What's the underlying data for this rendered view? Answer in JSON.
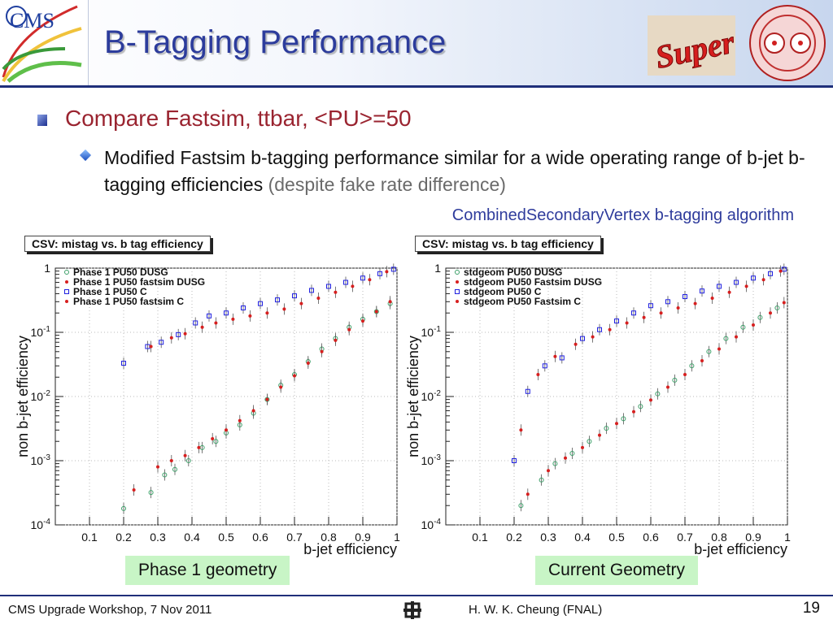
{
  "header": {
    "title": "B-Tagging Performance",
    "logos": {
      "cms_text": "CMS",
      "super_text": "Super"
    }
  },
  "bullets": {
    "main": "Compare Fastsim, ttbar, <PU>=50",
    "sub": "Modified Fastsim b-tagging performance similar for a wide operating range of b-jet b-tagging efficiencies",
    "sub_note": "(despite fake rate difference)",
    "algorithm": "CombinedSecondaryVertex b-tagging algorithm"
  },
  "plots": {
    "left": {
      "title": "CSV: mistag vs. b tag efficiency",
      "geometry_label": "Phase 1 geometry"
    },
    "right": {
      "title": "CSV: mistag vs. b tag efficiency",
      "geometry_label": "Current Geometry"
    }
  },
  "footer": {
    "event": "CMS Upgrade Workshop, 7 Nov 2011",
    "author": "H. W. K. Cheung (FNAL)",
    "page": "19"
  },
  "colors": {
    "title": "#2c3c9c",
    "bullet_main": "#9a2430",
    "green_label": "#c8f5c6",
    "series_green": "#3c9f68",
    "series_red": "#d71f1f",
    "series_blue": "#2020e0"
  },
  "chart_data": [
    {
      "type": "scatter",
      "title": "CSV: mistag vs. b tag efficiency",
      "xlabel": "b-jet efficiency",
      "ylabel": "non b-jet efficiency",
      "xlim": [
        0,
        1
      ],
      "ylim": [
        0.0001,
        1
      ],
      "yscale": "log",
      "xticks": [
        "0.1",
        "0.2",
        "0.3",
        "0.4",
        "0.5",
        "0.6",
        "0.7",
        "0.8",
        "0.9",
        "1"
      ],
      "yticks": [
        "10-4",
        "10-3",
        "10-2",
        "10-1",
        "1"
      ],
      "legend_position": "top-left",
      "series": [
        {
          "name": "Phase 1 PU50 DUSG",
          "marker": "open-circle",
          "color": "#3c9f68",
          "x": [
            0.2,
            0.28,
            0.32,
            0.35,
            0.39,
            0.43,
            0.47,
            0.5,
            0.54,
            0.58,
            0.62,
            0.66,
            0.7,
            0.74,
            0.78,
            0.82,
            0.86,
            0.9,
            0.94,
            0.98
          ],
          "y": [
            0.00018,
            0.00032,
            0.0006,
            0.00073,
            0.001,
            0.0016,
            0.002,
            0.0027,
            0.0036,
            0.0055,
            0.009,
            0.015,
            0.022,
            0.035,
            0.055,
            0.08,
            0.12,
            0.16,
            0.21,
            0.28
          ]
        },
        {
          "name": "Phase 1 PU50 fastsim DUSG",
          "marker": "dot",
          "color": "#d71f1f",
          "x": [
            0.23,
            0.3,
            0.34,
            0.38,
            0.42,
            0.46,
            0.5,
            0.54,
            0.58,
            0.62,
            0.66,
            0.7,
            0.74,
            0.78,
            0.82,
            0.86,
            0.9,
            0.94,
            0.98
          ],
          "y": [
            0.00035,
            0.0008,
            0.001,
            0.0012,
            0.0016,
            0.0022,
            0.003,
            0.0042,
            0.006,
            0.009,
            0.014,
            0.021,
            0.033,
            0.05,
            0.075,
            0.11,
            0.15,
            0.21,
            0.3
          ]
        },
        {
          "name": "Phase 1 PU50 C",
          "marker": "open-square",
          "color": "#2020e0",
          "x": [
            0.2,
            0.27,
            0.31,
            0.36,
            0.41,
            0.45,
            0.5,
            0.55,
            0.6,
            0.65,
            0.7,
            0.75,
            0.8,
            0.85,
            0.9,
            0.95,
            0.99
          ],
          "y": [
            0.033,
            0.06,
            0.07,
            0.092,
            0.14,
            0.18,
            0.2,
            0.24,
            0.28,
            0.32,
            0.37,
            0.45,
            0.52,
            0.6,
            0.7,
            0.82,
            0.96
          ]
        },
        {
          "name": "Phase 1 PU50 fastsim C",
          "marker": "dot",
          "color": "#d71f1f",
          "x": [
            0.28,
            0.34,
            0.38,
            0.43,
            0.47,
            0.52,
            0.57,
            0.62,
            0.67,
            0.72,
            0.77,
            0.82,
            0.87,
            0.92,
            0.97
          ],
          "y": [
            0.06,
            0.082,
            0.095,
            0.12,
            0.14,
            0.16,
            0.18,
            0.2,
            0.23,
            0.28,
            0.34,
            0.42,
            0.52,
            0.66,
            0.88
          ]
        }
      ]
    },
    {
      "type": "scatter",
      "title": "CSV: mistag vs. b tag efficiency",
      "xlabel": "b-jet efficiency",
      "ylabel": "non b-jet efficiency",
      "xlim": [
        0,
        1
      ],
      "ylim": [
        0.0001,
        1
      ],
      "yscale": "log",
      "xticks": [
        "0.1",
        "0.2",
        "0.3",
        "0.4",
        "0.5",
        "0.6",
        "0.7",
        "0.8",
        "0.9",
        "1"
      ],
      "yticks": [
        "10-4",
        "10-3",
        "10-2",
        "10-1",
        "1"
      ],
      "legend_position": "top-left",
      "series": [
        {
          "name": "stdgeom PU50 DUSG",
          "marker": "open-circle",
          "color": "#3c9f68",
          "x": [
            0.22,
            0.28,
            0.32,
            0.37,
            0.42,
            0.47,
            0.52,
            0.57,
            0.62,
            0.67,
            0.72,
            0.77,
            0.82,
            0.87,
            0.92,
            0.97
          ],
          "y": [
            0.0002,
            0.0005,
            0.0009,
            0.0013,
            0.002,
            0.0032,
            0.0045,
            0.007,
            0.011,
            0.018,
            0.03,
            0.05,
            0.08,
            0.12,
            0.17,
            0.24
          ]
        },
        {
          "name": "stdgeom PU50 Fastsim DUSG",
          "marker": "dot",
          "color": "#d71f1f",
          "x": [
            0.24,
            0.3,
            0.35,
            0.4,
            0.45,
            0.5,
            0.55,
            0.6,
            0.65,
            0.7,
            0.75,
            0.8,
            0.85,
            0.9,
            0.95,
            0.99
          ],
          "y": [
            0.0003,
            0.0007,
            0.0011,
            0.0016,
            0.0025,
            0.0038,
            0.0058,
            0.0088,
            0.014,
            0.022,
            0.036,
            0.055,
            0.085,
            0.13,
            0.2,
            0.29
          ]
        },
        {
          "name": "stdgeom PU50 C",
          "marker": "open-square",
          "color": "#2020e0",
          "x": [
            0.2,
            0.24,
            0.29,
            0.34,
            0.4,
            0.45,
            0.5,
            0.55,
            0.6,
            0.65,
            0.7,
            0.75,
            0.8,
            0.85,
            0.9,
            0.95,
            0.99
          ],
          "y": [
            0.001,
            0.012,
            0.03,
            0.04,
            0.08,
            0.11,
            0.15,
            0.2,
            0.26,
            0.3,
            0.36,
            0.44,
            0.52,
            0.6,
            0.7,
            0.82,
            0.96
          ]
        },
        {
          "name": "stdgeom PU50 Fastsim C",
          "marker": "dot",
          "color": "#d71f1f",
          "x": [
            0.22,
            0.27,
            0.32,
            0.38,
            0.43,
            0.48,
            0.53,
            0.58,
            0.63,
            0.68,
            0.73,
            0.78,
            0.83,
            0.88,
            0.93,
            0.98
          ],
          "y": [
            0.003,
            0.022,
            0.042,
            0.065,
            0.085,
            0.11,
            0.14,
            0.17,
            0.2,
            0.24,
            0.28,
            0.34,
            0.42,
            0.52,
            0.66,
            0.9
          ]
        }
      ]
    }
  ]
}
